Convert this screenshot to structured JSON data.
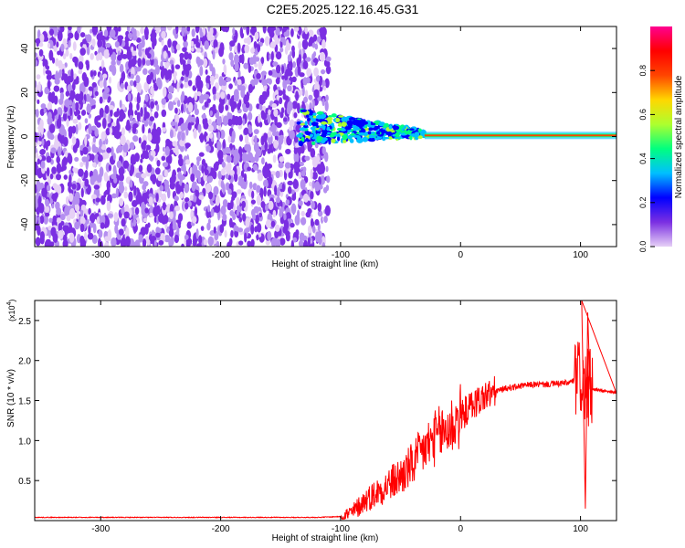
{
  "title": "C2E5.2025.122.16.45.G31",
  "colors": {
    "colormap": [
      "#ffffff",
      "#e6d0f6",
      "#7b2fe2",
      "#0000ff",
      "#00bfff",
      "#00ff7f",
      "#adff2f",
      "#ffd700",
      "#ff4500",
      "#ff0000",
      "#ff0090"
    ],
    "snr_line": "#ff0000"
  },
  "chart_data": [
    {
      "type": "heatmap",
      "name": "spectrogram",
      "xlabel": "Height of straight line (km)",
      "ylabel": "Frequency (Hz)",
      "xlim": [
        -355,
        130
      ],
      "ylim": [
        -50,
        50
      ],
      "xticks": [
        -300,
        -200,
        -100,
        0,
        100
      ],
      "xtick_labels": [
        "-300",
        "-200",
        "-100",
        "0",
        "100"
      ],
      "yticks": [
        -40,
        -20,
        0,
        20,
        40
      ],
      "ytick_labels": [
        "-40",
        "-20",
        "0",
        "20",
        "40"
      ],
      "colorbar": {
        "label": "Normalized spectral amplitude",
        "range": [
          0,
          1
        ],
        "ticks": [
          0.0,
          0.2,
          0.4,
          0.6,
          0.8
        ],
        "tick_labels": [
          "0.0",
          "0.2",
          "0.4",
          "0.6",
          "0.8"
        ]
      },
      "features": {
        "noise_region_x": [
          -355,
          -110
        ],
        "signal_onset_x": -135,
        "carrier_frequency": 0.5,
        "carrier_start_x": -30
      }
    },
    {
      "type": "line",
      "name": "snr",
      "xlabel": "Height of straight line (km)",
      "ylabel": "SNR (10 * v/v)",
      "y_multiplier_label": "(x10",
      "y_multiplier_exponent": "4",
      "xlim": [
        -355,
        130
      ],
      "ylim": [
        0,
        2.75
      ],
      "xticks": [
        -300,
        -200,
        -100,
        0,
        100
      ],
      "xtick_labels": [
        "-300",
        "-200",
        "-100",
        "0",
        "100"
      ],
      "yticks": [
        0.5,
        1.0,
        1.5,
        2.0,
        2.5
      ],
      "ytick_labels": [
        "0.5",
        "1.0",
        "1.5",
        "2.0",
        "2.5"
      ],
      "series": [
        {
          "x": [
            -355,
            -300,
            -200,
            -120,
            -100,
            -90,
            -80,
            -70,
            -60,
            -50,
            -40,
            -30,
            -20,
            -10,
            0,
            10,
            20,
            30,
            40,
            50,
            60,
            70,
            80,
            90,
            95,
            100,
            102,
            105,
            110,
            120,
            130
          ],
          "y": [
            0.04,
            0.04,
            0.04,
            0.04,
            0.05,
            0.1,
            0.25,
            0.35,
            0.45,
            0.55,
            0.7,
            0.9,
            1.05,
            1.15,
            1.3,
            1.45,
            1.55,
            1.62,
            1.66,
            1.68,
            1.7,
            1.7,
            1.71,
            1.72,
            1.75,
            1.8,
            1.7,
            1.65,
            1.64,
            1.62,
            1.6
          ]
        }
      ],
      "spikes": [
        {
          "x": 101,
          "y": 2.75
        },
        {
          "x": 104,
          "y": 0.15
        },
        {
          "x": 106,
          "y": 2.6
        }
      ]
    }
  ]
}
